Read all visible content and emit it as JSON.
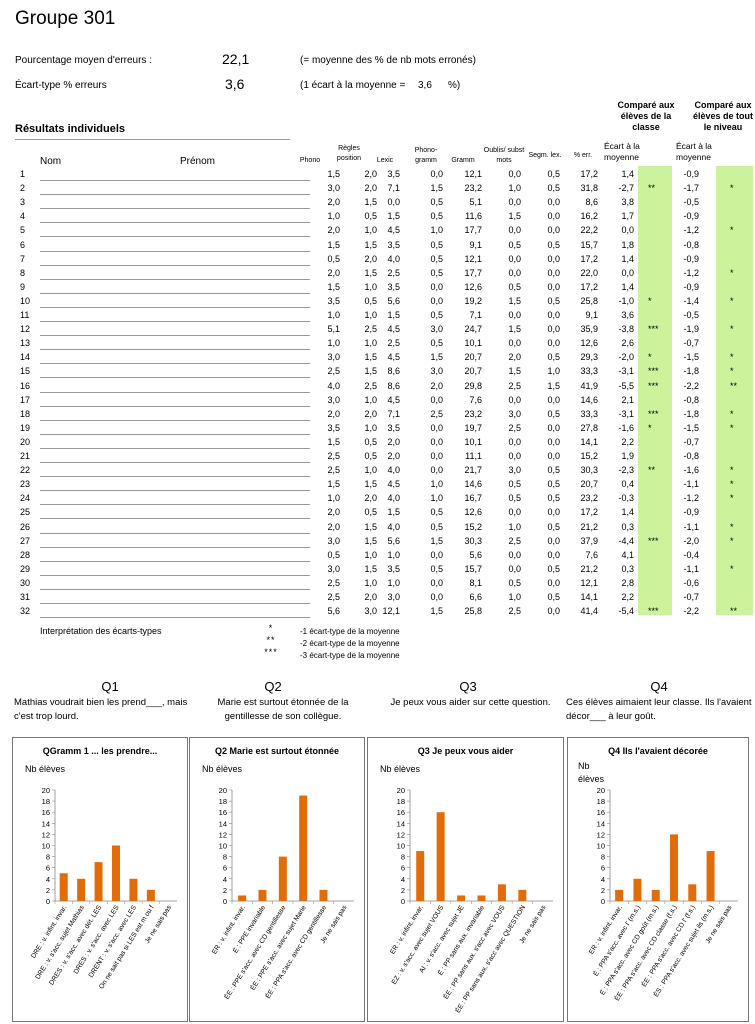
{
  "title": "Groupe 301",
  "summary": {
    "mean_label": "Pourcentage moyen d'erreurs :",
    "mean_value": "22,1",
    "mean_note": "(= moyenne des % de nb mots erronés)",
    "sd_label": "Écart-type % erreurs",
    "sd_value": "3,6",
    "sd_note_prefix": "(1 écart à la moyenne =",
    "sd_note_value": "3,6",
    "sd_note_suffix": "%)"
  },
  "results_title": "Résultats individuels",
  "compare_class_header": "Comparé aux élèves de la classe",
  "compare_level_header": "Comparé aux élèves de tout le niveau",
  "columns": {
    "nom": "Nom",
    "prenom": "Prénom",
    "phono": "Phono",
    "regles": "Règles position",
    "lexic": "Lexic",
    "phonogramm": "Phono-gramm",
    "gramm": "Gramm",
    "oublis": "Oublis/ subst mots",
    "segm": "Segm. lex.",
    "perr": "% err.",
    "ecart_class": "Écart à la moyenne",
    "ecart_level": "Écart à la moyenne"
  },
  "rows": [
    {
      "n": "1",
      "v": [
        "1,5",
        "2,0",
        "3,5",
        "0,0",
        "12,1",
        "0,0",
        "0,5",
        "17,2"
      ],
      "ec": "1,4",
      "sc": "",
      "el": "-0,9",
      "sl": ""
    },
    {
      "n": "2",
      "v": [
        "3,0",
        "2,0",
        "7,1",
        "1,5",
        "23,2",
        "1,0",
        "0,5",
        "31,8"
      ],
      "ec": "-2,7",
      "sc": "**",
      "el": "-1,7",
      "sl": "*"
    },
    {
      "n": "3",
      "v": [
        "2,0",
        "1,5",
        "0,0",
        "0,5",
        "5,1",
        "0,0",
        "0,0",
        "8,6"
      ],
      "ec": "3,8",
      "sc": "",
      "el": "-0,5",
      "sl": ""
    },
    {
      "n": "4",
      "v": [
        "1,0",
        "0,5",
        "1,5",
        "0,5",
        "11,6",
        "1,5",
        "0,0",
        "16,2"
      ],
      "ec": "1,7",
      "sc": "",
      "el": "-0,9",
      "sl": ""
    },
    {
      "n": "5",
      "v": [
        "2,0",
        "1,0",
        "4,5",
        "1,0",
        "17,7",
        "0,0",
        "0,0",
        "22,2"
      ],
      "ec": "0,0",
      "sc": "",
      "el": "-1,2",
      "sl": "*"
    },
    {
      "n": "6",
      "v": [
        "1,5",
        "1,5",
        "3,5",
        "0,5",
        "9,1",
        "0,5",
        "0,5",
        "15,7"
      ],
      "ec": "1,8",
      "sc": "",
      "el": "-0,8",
      "sl": ""
    },
    {
      "n": "7",
      "v": [
        "0,5",
        "2,0",
        "4,0",
        "0,5",
        "12,1",
        "0,0",
        "0,0",
        "17,2"
      ],
      "ec": "1,4",
      "sc": "",
      "el": "-0,9",
      "sl": ""
    },
    {
      "n": "8",
      "v": [
        "2,0",
        "1,5",
        "2,5",
        "0,5",
        "17,7",
        "0,0",
        "0,0",
        "22,0"
      ],
      "ec": "0,0",
      "sc": "",
      "el": "-1,2",
      "sl": "*"
    },
    {
      "n": "9",
      "v": [
        "1,5",
        "1,0",
        "3,5",
        "0,0",
        "12,6",
        "0,5",
        "0,0",
        "17,2"
      ],
      "ec": "1,4",
      "sc": "",
      "el": "-0,9",
      "sl": ""
    },
    {
      "n": "10",
      "v": [
        "3,5",
        "0,5",
        "5,6",
        "0,0",
        "19,2",
        "1,5",
        "0,5",
        "25,8"
      ],
      "ec": "-1,0",
      "sc": "*",
      "el": "-1,4",
      "sl": "*"
    },
    {
      "n": "11",
      "v": [
        "1,0",
        "1,0",
        "1,5",
        "0,5",
        "7,1",
        "0,0",
        "0,0",
        "9,1"
      ],
      "ec": "3,6",
      "sc": "",
      "el": "-0,5",
      "sl": ""
    },
    {
      "n": "12",
      "v": [
        "5,1",
        "2,5",
        "4,5",
        "3,0",
        "24,7",
        "1,5",
        "0,0",
        "35,9"
      ],
      "ec": "-3,8",
      "sc": "***",
      "el": "-1,9",
      "sl": "*"
    },
    {
      "n": "13",
      "v": [
        "1,0",
        "1,0",
        "2,5",
        "0,5",
        "10,1",
        "0,0",
        "0,0",
        "12,6"
      ],
      "ec": "2,6",
      "sc": "",
      "el": "-0,7",
      "sl": ""
    },
    {
      "n": "14",
      "v": [
        "3,0",
        "1,5",
        "4,5",
        "1,5",
        "20,7",
        "2,0",
        "0,5",
        "29,3"
      ],
      "ec": "-2,0",
      "sc": "*",
      "el": "-1,5",
      "sl": "*"
    },
    {
      "n": "15",
      "v": [
        "2,5",
        "1,5",
        "8,6",
        "3,0",
        "20,7",
        "1,5",
        "1,0",
        "33,3"
      ],
      "ec": "-3,1",
      "sc": "***",
      "el": "-1,8",
      "sl": "*"
    },
    {
      "n": "16",
      "v": [
        "4,0",
        "2,5",
        "8,6",
        "2,0",
        "29,8",
        "2,5",
        "1,5",
        "41,9"
      ],
      "ec": "-5,5",
      "sc": "***",
      "el": "-2,2",
      "sl": "**"
    },
    {
      "n": "17",
      "v": [
        "3,0",
        "1,0",
        "4,5",
        "0,0",
        "7,6",
        "0,0",
        "0,0",
        "14,6"
      ],
      "ec": "2,1",
      "sc": "",
      "el": "-0,8",
      "sl": ""
    },
    {
      "n": "18",
      "v": [
        "2,0",
        "2,0",
        "7,1",
        "2,5",
        "23,2",
        "3,0",
        "0,5",
        "33,3"
      ],
      "ec": "-3,1",
      "sc": "***",
      "el": "-1,8",
      "sl": "*"
    },
    {
      "n": "19",
      "v": [
        "3,5",
        "1,0",
        "3,5",
        "0,0",
        "19,7",
        "2,5",
        "0,0",
        "27,8"
      ],
      "ec": "-1,6",
      "sc": "*",
      "el": "-1,5",
      "sl": "*"
    },
    {
      "n": "20",
      "v": [
        "1,5",
        "0,5",
        "2,0",
        "0,0",
        "10,1",
        "0,0",
        "0,0",
        "14,1"
      ],
      "ec": "2,2",
      "sc": "",
      "el": "-0,7",
      "sl": ""
    },
    {
      "n": "21",
      "v": [
        "2,5",
        "0,5",
        "2,0",
        "0,0",
        "11,1",
        "0,0",
        "0,0",
        "15,2"
      ],
      "ec": "1,9",
      "sc": "",
      "el": "-0,8",
      "sl": ""
    },
    {
      "n": "22",
      "v": [
        "2,5",
        "1,0",
        "4,0",
        "0,0",
        "21,7",
        "3,0",
        "0,5",
        "30,3"
      ],
      "ec": "-2,3",
      "sc": "**",
      "el": "-1,6",
      "sl": "*"
    },
    {
      "n": "23",
      "v": [
        "1,5",
        "1,5",
        "4,5",
        "1,0",
        "14,6",
        "0,5",
        "0,5",
        "20,7"
      ],
      "ec": "0,4",
      "sc": "",
      "el": "-1,1",
      "sl": "*"
    },
    {
      "n": "24",
      "v": [
        "1,0",
        "2,0",
        "4,0",
        "1,0",
        "16,7",
        "0,5",
        "0,5",
        "23,2"
      ],
      "ec": "-0,3",
      "sc": "",
      "el": "-1,2",
      "sl": "*"
    },
    {
      "n": "25",
      "v": [
        "2,0",
        "0,5",
        "1,5",
        "0,5",
        "12,6",
        "0,0",
        "0,0",
        "17,2"
      ],
      "ec": "1,4",
      "sc": "",
      "el": "-0,9",
      "sl": ""
    },
    {
      "n": "26",
      "v": [
        "2,0",
        "1,5",
        "4,0",
        "0,5",
        "15,2",
        "1,0",
        "0,5",
        "21,2"
      ],
      "ec": "0,3",
      "sc": "",
      "el": "-1,1",
      "sl": "*"
    },
    {
      "n": "27",
      "v": [
        "3,0",
        "1,5",
        "5,6",
        "1,5",
        "30,3",
        "2,5",
        "0,0",
        "37,9"
      ],
      "ec": "-4,4",
      "sc": "***",
      "el": "-2,0",
      "sl": "*"
    },
    {
      "n": "28",
      "v": [
        "0,5",
        "1,0",
        "1,0",
        "0,0",
        "5,6",
        "0,0",
        "0,0",
        "7,6"
      ],
      "ec": "4,1",
      "sc": "",
      "el": "-0,4",
      "sl": ""
    },
    {
      "n": "29",
      "v": [
        "3,0",
        "1,5",
        "3,5",
        "0,5",
        "15,7",
        "0,0",
        "0,5",
        "21,2"
      ],
      "ec": "0,3",
      "sc": "",
      "el": "-1,1",
      "sl": "*"
    },
    {
      "n": "30",
      "v": [
        "2,5",
        "1,0",
        "1,0",
        "0,0",
        "8,1",
        "0,5",
        "0,0",
        "12,1"
      ],
      "ec": "2,8",
      "sc": "",
      "el": "-0,6",
      "sl": ""
    },
    {
      "n": "31",
      "v": [
        "2,5",
        "2,0",
        "3,0",
        "0,0",
        "6,6",
        "1,0",
        "0,5",
        "14,1"
      ],
      "ec": "2,2",
      "sc": "",
      "el": "-0,7",
      "sl": ""
    },
    {
      "n": "32",
      "v": [
        "5,6",
        "3,0",
        "12,1",
        "1,5",
        "25,8",
        "2,5",
        "0,0",
        "41,4"
      ],
      "ec": "-5,4",
      "sc": "***",
      "el": "-2,2",
      "sl": "**"
    }
  ],
  "legend": {
    "title": "Interprétation des écarts-types",
    "items": [
      {
        "sym": "*",
        "text": "-1 écart-type de la moyenne"
      },
      {
        "sym": "**",
        "text": "-2 écart-type de la moyenne"
      },
      {
        "sym": "***",
        "text": "-3 écart-type de la moyenne"
      }
    ]
  },
  "questions": [
    {
      "label": "Q1",
      "text": "Mathias voudrait bien les prend___, mais c'est trop lourd."
    },
    {
      "label": "Q2",
      "text": "Marie est surtout étonnée de la gentillesse de son collègue."
    },
    {
      "label": "Q3",
      "text": "Je peux vous aider sur cette question."
    },
    {
      "label": "Q4",
      "text": "Ces élèves aimaient leur classe. Ils l'avaient décor___ à leur goût."
    }
  ],
  "chart_data": [
    {
      "type": "bar",
      "title": "QGramm 1  ... les prendre...",
      "ylabel": "Nb élèves",
      "ylim": [
        0,
        20
      ],
      "categories": [
        "DRE : v. infint. invar.",
        "DRE : v. s'acc. sujet Mathias",
        "DRES : v. s'acc. avec dét. LES",
        "DRES : v. s'acc. avec LES",
        "DRENT : v. s'acc. avec LES",
        "On ne sait pas si LES est m ou f",
        "Je ne sais pas"
      ],
      "values": [
        5,
        4,
        7,
        10,
        4,
        2,
        0
      ],
      "color": "#e36c0a"
    },
    {
      "type": "bar",
      "title": "Q2 Marie est surtout  étonnée",
      "ylabel": "Nb élèves",
      "ylim": [
        0,
        20
      ],
      "categories": [
        "ER : v. infint. invar.",
        "É : PPE invariable",
        "ÉE : PPE s'acc. avec CD gentillesse",
        "ÉE : PPE s'acc. avec sujet Marie",
        "ÉE : PPA s'acc. avec CD gentillesse",
        "Je ne sais pas"
      ],
      "values": [
        1,
        2,
        8,
        19,
        2,
        0
      ],
      "color": "#e36c0a"
    },
    {
      "type": "bar",
      "title": "Q3 Je peux vous aider",
      "ylabel": "Nb élèves",
      "ylim": [
        0,
        20
      ],
      "categories": [
        "ER : v. infint. invar.",
        "EZ : v. s'acc. avec sujet VOUS",
        "AI : v. s'acc. avec sujet JE",
        "É : PP sans aux. invariable",
        "ÉE : PP sans aux. s'acc avec VOUS",
        "ÉE : PP sans aux. s'acc avec QUESTION",
        "Je ne sais pas"
      ],
      "values": [
        9,
        16,
        1,
        1,
        3,
        2,
        0
      ],
      "color": "#e36c0a"
    },
    {
      "type": "bar",
      "title": "Q4  Ils l'avaient décorée",
      "ylabel": "Nb élèves",
      "ylim": [
        0,
        20
      ],
      "categories": [
        "ER : v. infint. invar.",
        "É : PPA s'acc. avec l' (m.s.)",
        "É : PPA s'acc. avec CD goût (m.s.)",
        "ÉE : PPA s'acc. avec CD classe (f.s.)",
        "ÉE : PPA s'acc. avec CD l' (f.s.)",
        "ÉS : PPA s'acc. avec sujet ils (m.s.)",
        "Je ne sais pas"
      ],
      "values": [
        2,
        4,
        2,
        12,
        3,
        9,
        0
      ],
      "color": "#e36c0a"
    }
  ]
}
